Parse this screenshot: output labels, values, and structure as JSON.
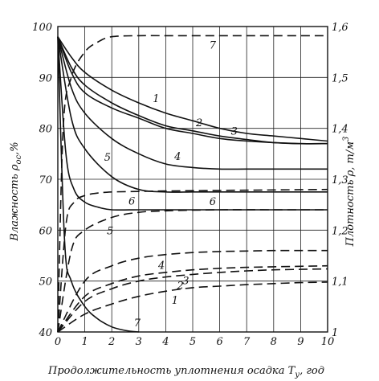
{
  "chart_data": {
    "type": "line",
    "xlabel": "Продолжительность уплотнения осадка T",
    "xlabel_sub": "у",
    "xlabel_unit": ", год",
    "ylabel_left": "Влажность ρ",
    "ylabel_left_sub": "ос",
    "ylabel_left_unit": ",%",
    "ylabel_right": "Плотность ρ, т/м",
    "ylabel_right_sup": "3",
    "xlim": [
      0,
      10
    ],
    "ylim_left": [
      40,
      100
    ],
    "ylim_right": [
      1.0,
      1.6
    ],
    "x_ticks": [
      "0",
      "1",
      "2",
      "3",
      "4",
      "5",
      "6",
      "7",
      "8",
      "9",
      "10"
    ],
    "y_left_ticks": [
      "40",
      "50",
      "60",
      "70",
      "80",
      "90",
      "100"
    ],
    "y_right_ticks": [
      "1",
      "1,1",
      "1,2",
      "1,3",
      "1,4",
      "1,5",
      "1,6"
    ],
    "grid": true,
    "moisture_series": [
      {
        "label": "1",
        "axis": "left",
        "style": "solid",
        "x": [
          0,
          0.5,
          1,
          2,
          3,
          4,
          5,
          6,
          7,
          8,
          9,
          10
        ],
        "y": [
          98,
          94,
          91,
          87.5,
          85,
          83,
          81.5,
          80,
          79,
          78.5,
          78,
          77.5
        ]
      },
      {
        "label": "2",
        "axis": "left",
        "style": "solid",
        "x": [
          0,
          0.5,
          1,
          2,
          3,
          4,
          5,
          6,
          7,
          8,
          9,
          10
        ],
        "y": [
          98,
          92,
          88.5,
          85,
          82.5,
          80.5,
          79.5,
          78.5,
          77.8,
          77.2,
          77,
          77
        ]
      },
      {
        "label": "3",
        "axis": "left",
        "style": "solid",
        "x": [
          0,
          0.5,
          1,
          2,
          3,
          4,
          5,
          6,
          7,
          8,
          9,
          10
        ],
        "y": [
          98,
          91,
          87,
          84,
          82,
          80,
          79,
          78,
          77.5,
          77.2,
          77,
          77
        ]
      },
      {
        "label": "4",
        "axis": "left",
        "style": "solid",
        "x": [
          0,
          0.5,
          1,
          2,
          3,
          4,
          5,
          6,
          7,
          8,
          9,
          10
        ],
        "y": [
          98,
          88,
          83,
          78,
          75,
          73,
          72.3,
          72,
          72,
          72,
          72,
          72
        ]
      },
      {
        "label": "5",
        "axis": "left",
        "style": "solid",
        "x": [
          0,
          0.5,
          1,
          2,
          3,
          4,
          5,
          6,
          7,
          8,
          9,
          10
        ],
        "y": [
          98,
          82,
          76,
          70.5,
          68,
          67.5,
          67.5,
          67.5,
          67.5,
          67.5,
          67.5,
          67.5
        ]
      },
      {
        "label": "6",
        "axis": "left",
        "style": "solid",
        "x": [
          0,
          0.3,
          0.6,
          1,
          1.5,
          2,
          3,
          4,
          6,
          8,
          10
        ],
        "y": [
          98,
          75,
          68,
          65.5,
          64.5,
          64,
          64,
          64,
          64,
          64,
          64
        ]
      },
      {
        "label": "7",
        "axis": "left",
        "style": "solid",
        "x": [
          0,
          0.25,
          0.5,
          1,
          1.5,
          2,
          2.5,
          3
        ],
        "y": [
          98,
          58,
          50,
          45,
          42.5,
          41,
          40.3,
          40
        ]
      }
    ],
    "density_series": [
      {
        "label": "1",
        "axis": "right",
        "style": "dashed",
        "x": [
          0,
          1,
          2,
          3,
          4,
          5,
          6,
          7,
          8,
          9,
          10
        ],
        "y": [
          1.0,
          1.035,
          1.055,
          1.07,
          1.08,
          1.087,
          1.09,
          1.093,
          1.095,
          1.097,
          1.098
        ]
      },
      {
        "label": "2",
        "axis": "right",
        "style": "dashed",
        "x": [
          0,
          1,
          2,
          3,
          4,
          5,
          6,
          7,
          8,
          9,
          10
        ],
        "y": [
          1.0,
          1.06,
          1.085,
          1.1,
          1.108,
          1.113,
          1.117,
          1.12,
          1.122,
          1.123,
          1.124
        ]
      },
      {
        "label": "3",
        "axis": "right",
        "style": "dashed",
        "x": [
          0,
          1,
          2,
          3,
          4,
          5,
          6,
          7,
          8,
          9,
          10
        ],
        "y": [
          1.0,
          1.07,
          1.095,
          1.11,
          1.117,
          1.122,
          1.125,
          1.127,
          1.128,
          1.129,
          1.13
        ]
      },
      {
        "label": "4",
        "axis": "right",
        "style": "dashed",
        "x": [
          0,
          1,
          2,
          3,
          4,
          5,
          6,
          7,
          8,
          9,
          10
        ],
        "y": [
          1.0,
          1.1,
          1.13,
          1.145,
          1.152,
          1.156,
          1.158,
          1.159,
          1.16,
          1.16,
          1.16
        ]
      },
      {
        "label": "5",
        "axis": "right",
        "style": "dashed",
        "x": [
          0,
          0.5,
          1,
          2,
          3,
          4,
          6,
          8,
          10
        ],
        "y": [
          1.0,
          1.16,
          1.2,
          1.225,
          1.235,
          1.238,
          1.24,
          1.24,
          1.24
        ]
      },
      {
        "label": "6",
        "axis": "right",
        "style": "dashed",
        "x": [
          0,
          0.3,
          0.6,
          1,
          1.5,
          2,
          3,
          4,
          6,
          8,
          10
        ],
        "y": [
          1.0,
          1.21,
          1.255,
          1.268,
          1.273,
          1.275,
          1.276,
          1.277,
          1.278,
          1.279,
          1.28
        ]
      },
      {
        "label": "7",
        "axis": "right",
        "style": "dashed",
        "x": [
          0,
          0.2,
          0.5,
          1,
          1.5,
          2,
          3,
          4,
          6,
          8,
          10
        ],
        "y": [
          1.0,
          1.4,
          1.5,
          1.55,
          1.57,
          1.58,
          1.582,
          1.582,
          1.582,
          1.582,
          1.582
        ]
      }
    ]
  }
}
